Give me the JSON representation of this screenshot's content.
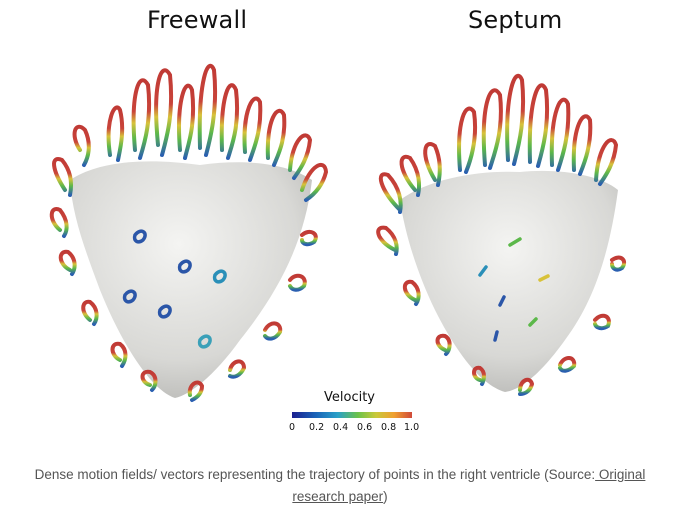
{
  "figure": {
    "panels": [
      {
        "title": "Freewall"
      },
      {
        "title": "Septum"
      }
    ],
    "legend": {
      "title": "Velocity",
      "ticks": [
        "0",
        "0.2",
        "0.4",
        "0.6",
        "0.8",
        "1.0"
      ],
      "colors": [
        "#1b1f8f",
        "#1a64b8",
        "#2aa0c8",
        "#6cc24a",
        "#c9c93a",
        "#f0a030",
        "#d04a3a"
      ]
    }
  },
  "caption": {
    "text": "Dense motion fields/ vectors representing the trajectory of points in the right ventricle (Source:",
    "link_text": " Original research paper",
    "suffix": ")"
  }
}
